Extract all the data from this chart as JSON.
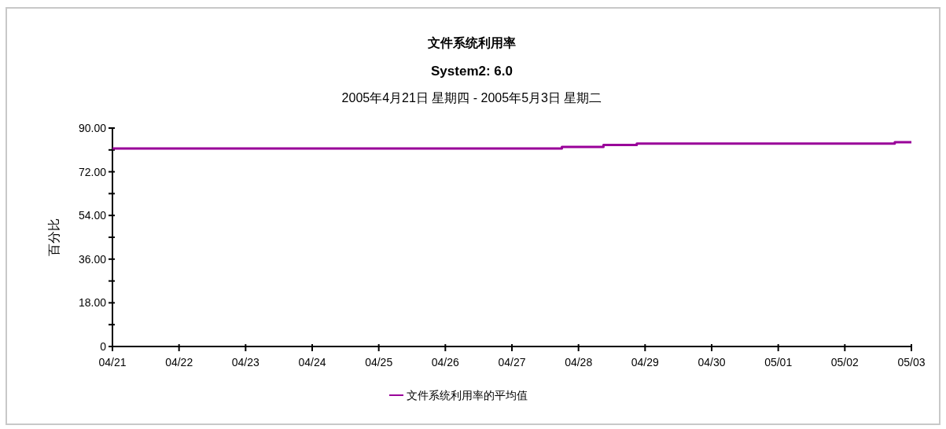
{
  "chart_data": {
    "type": "step",
    "title": "文件系统利用率",
    "subtitle": "System2: 6.0",
    "annotations": [
      "2005年4月21日 星期四 - 2005年5月3日 星期二"
    ],
    "ylabel": "百分比",
    "x": [
      "2005-04-21T00:00",
      "2005-04-27T18:00",
      "2005-04-28T09:00",
      "2005-04-28T21:00",
      "2005-05-02T18:00",
      "2005-05-03T00:00"
    ],
    "series": [
      {
        "name": "文件系统利用率的平均值",
        "color": "#990099",
        "values": [
          81.6,
          82.2,
          83.0,
          83.6,
          84.2,
          84.2
        ]
      }
    ],
    "xlim": [
      "2005-04-21",
      "2005-05-03"
    ],
    "xticks": [
      {
        "value": "2005-04-21",
        "label": "04/21"
      },
      {
        "value": "2005-04-22",
        "label": "04/22"
      },
      {
        "value": "2005-04-23",
        "label": "04/23"
      },
      {
        "value": "2005-04-24",
        "label": "04/24"
      },
      {
        "value": "2005-04-25",
        "label": "04/25"
      },
      {
        "value": "2005-04-26",
        "label": "04/26"
      },
      {
        "value": "2005-04-27",
        "label": "04/27"
      },
      {
        "value": "2005-04-28",
        "label": "04/28"
      },
      {
        "value": "2005-04-29",
        "label": "04/29"
      },
      {
        "value": "2005-04-30",
        "label": "04/30"
      },
      {
        "value": "2005-05-01",
        "label": "05/01"
      },
      {
        "value": "2005-05-02",
        "label": "05/02"
      },
      {
        "value": "2005-05-03",
        "label": "05/03"
      }
    ],
    "ylim": [
      0,
      90
    ],
    "yticks": [
      0,
      {
        "value": 9,
        "label": null
      },
      {
        "value": 18,
        "label": "18.00"
      },
      {
        "value": 27,
        "label": null
      },
      {
        "value": 36,
        "label": "36.00"
      },
      {
        "value": 45,
        "label": null
      },
      {
        "value": 54,
        "label": "54.00"
      },
      {
        "value": 63,
        "label": null
      },
      {
        "value": 72,
        "label": "72.00"
      },
      {
        "value": 81,
        "label": null
      },
      {
        "value": 90,
        "label": "90.00"
      }
    ],
    "legend": "bottom"
  }
}
